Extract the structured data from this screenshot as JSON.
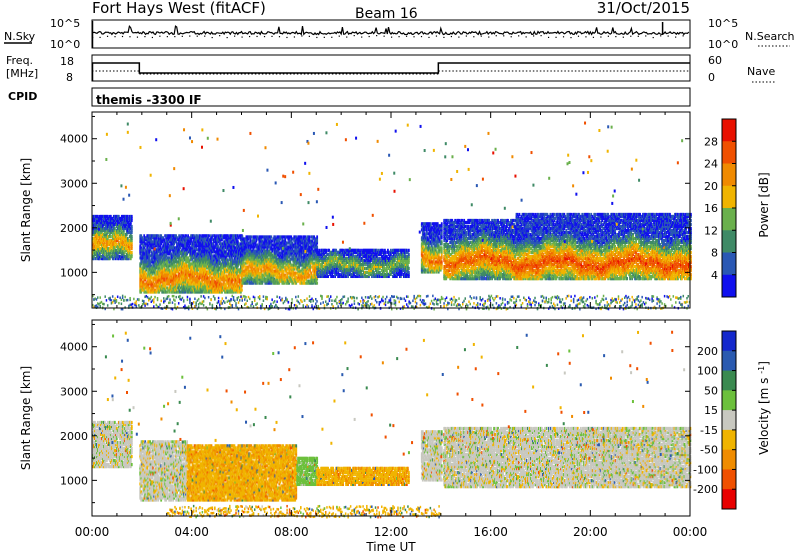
{
  "header": {
    "station": "Fort Hays West (fitACF)",
    "beam": "Beam 16",
    "date": "31/Oct/2015"
  },
  "noise_panel": {
    "left_label": "N.Sky",
    "right_label": "N.Search",
    "left_ticks": [
      "10^5",
      "10^0"
    ],
    "right_ticks": [
      "10^5",
      "10^0"
    ]
  },
  "freq_panel": {
    "left_label_line1": "Freq.",
    "left_label_line2": "[MHz]",
    "right_label": "Nave",
    "left_ticks": [
      "18",
      "8"
    ],
    "right_ticks": [
      "60",
      "0"
    ]
  },
  "cpid_panel": {
    "label": "CPID",
    "program": "themis -3300 IF"
  },
  "colors": {
    "power_scale": [
      "#1010ee",
      "#2a58b4",
      "#3f8a66",
      "#6ab04c",
      "#f0b400",
      "#f08a00",
      "#f05000",
      "#e81000"
    ],
    "velocity_scale": [
      "#e80000",
      "#f05000",
      "#f08c00",
      "#f0b400",
      "#c8c8c0",
      "#6cc03c",
      "#3a8a50",
      "#2a5ab0",
      "#1428cc"
    ]
  },
  "chart_data": [
    {
      "type": "heatmap",
      "title": "",
      "ylabel": "Slant Range [km]",
      "xlabel": "",
      "x_ticks": [
        "00:00",
        "04:00",
        "08:00",
        "12:00",
        "16:00",
        "20:00",
        "00:00"
      ],
      "y_ticks": [
        1000,
        2000,
        3000,
        4000
      ],
      "ylim": [
        200,
        4600
      ],
      "xlim_hours": [
        0,
        24
      ],
      "colorbar": {
        "label": "Power [dB]",
        "ticks": [
          4,
          8,
          12,
          16,
          20,
          24,
          28
        ],
        "range": [
          0,
          32
        ]
      },
      "bands": [
        {
          "hours": [
            0,
            1.6
          ],
          "range_km": [
            1300,
            2250
          ],
          "core_km": 1600,
          "value": 22
        },
        {
          "hours": [
            1.9,
            6.0
          ],
          "range_km": [
            550,
            1850
          ],
          "core_km": 850,
          "value": 24
        },
        {
          "hours": [
            6.0,
            9.0
          ],
          "range_km": [
            750,
            1800
          ],
          "core_km": 1000,
          "value": 22
        },
        {
          "hours": [
            9.0,
            12.7
          ],
          "range_km": [
            900,
            1500
          ],
          "core_km": 1150,
          "value": 16
        },
        {
          "hours": [
            13.2,
            14.0
          ],
          "range_km": [
            1000,
            2100
          ],
          "core_km": 1300,
          "value": 24
        },
        {
          "hours": [
            14.1,
            17.0
          ],
          "range_km": [
            850,
            2200
          ],
          "core_km": 1250,
          "value": 26
        },
        {
          "hours": [
            17.0,
            24.0
          ],
          "range_km": [
            850,
            2300
          ],
          "core_km": 1200,
          "value": 27
        }
      ],
      "ground_clutter": {
        "hours": [
          0,
          24
        ],
        "range_km": [
          200,
          500
        ],
        "value": 10
      }
    },
    {
      "type": "heatmap",
      "title": "",
      "ylabel": "Slant Range [km]",
      "xlabel": "Time UT",
      "x_ticks": [
        "00:00",
        "04:00",
        "08:00",
        "12:00",
        "16:00",
        "20:00",
        "00:00"
      ],
      "y_ticks": [
        1000,
        2000,
        3000,
        4000
      ],
      "ylim": [
        200,
        4600
      ],
      "xlim_hours": [
        0,
        24
      ],
      "colorbar": {
        "label": "Velocity [m s^-1]",
        "ticks": [
          200,
          100,
          50,
          15,
          -15,
          -50,
          -100,
          -200
        ],
        "range": [
          -250,
          250
        ]
      },
      "bands": [
        {
          "hours": [
            0,
            1.6
          ],
          "range_km": [
            1300,
            2300
          ],
          "value": 0
        },
        {
          "hours": [
            1.9,
            3.8
          ],
          "range_km": [
            550,
            1900
          ],
          "value": 0
        },
        {
          "hours": [
            3.8,
            8.2
          ],
          "range_km": [
            550,
            1800
          ],
          "value": -40
        },
        {
          "hours": [
            8.2,
            9.0
          ],
          "range_km": [
            900,
            1500
          ],
          "value": 30
        },
        {
          "hours": [
            9.0,
            12.7
          ],
          "range_km": [
            900,
            1300
          ],
          "value": -40
        },
        {
          "hours": [
            13.2,
            14.0
          ],
          "range_km": [
            1000,
            2100
          ],
          "value": 0
        },
        {
          "hours": [
            14.1,
            24.0
          ],
          "range_km": [
            850,
            2200
          ],
          "value": 0
        }
      ],
      "ground_clutter": {
        "hours": [
          3.0,
          14.0
        ],
        "range_km": [
          200,
          450
        ],
        "value": -40
      }
    }
  ]
}
